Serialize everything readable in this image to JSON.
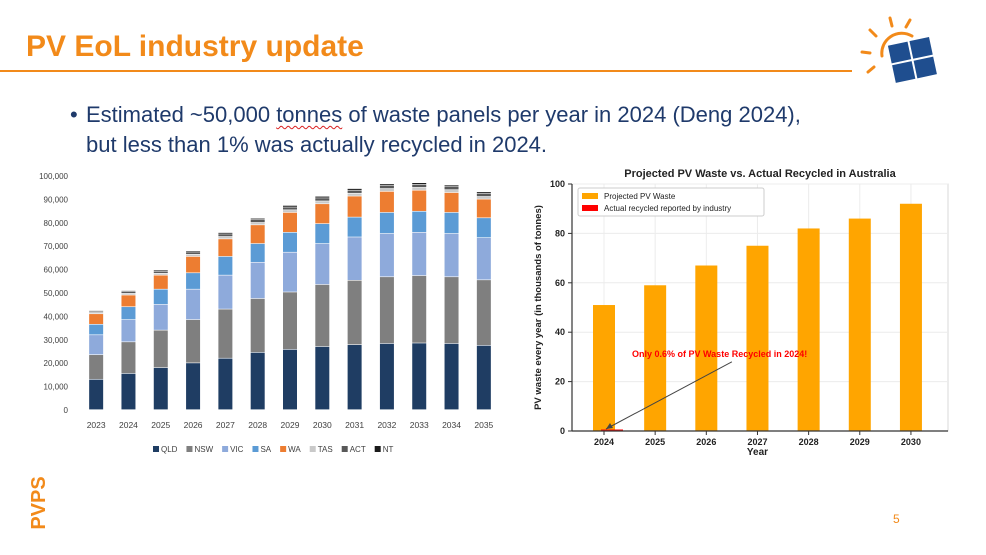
{
  "slide": {
    "title": "PV EoL industry update",
    "bullet_bullet": "•",
    "bullet_line1": "Estimated ~50,000 tonnes of waste panels per year in 2024 (Deng 2024),",
    "bullet_line2": "but less than 1% was actually recycled in 2024.",
    "bullet_line1_pre": "Estimated ~50,000 ",
    "bullet_line1_mark": "tonnes",
    "bullet_line1_post": " of waste panels per year in 2024 (Deng 2024),",
    "side_label": "PVPS",
    "page_number": "5",
    "colors": {
      "accent": "#f28a1a",
      "text": "#1f3a6b"
    }
  },
  "chart_data": [
    {
      "type": "bar",
      "stacked": true,
      "title": "",
      "xlabel": "",
      "ylabel": "",
      "ylim": [
        0,
        100000
      ],
      "yticks": [
        "0",
        "10,000",
        "20,000",
        "30,000",
        "40,000",
        "50,000",
        "60,000",
        "70,000",
        "80,000",
        "90,000",
        "100,000"
      ],
      "categories": [
        "2023",
        "2024",
        "2025",
        "2026",
        "2027",
        "2028",
        "2029",
        "2030",
        "2031",
        "2032",
        "2033",
        "2034",
        "2035"
      ],
      "series": [
        {
          "name": "QLD",
          "color": "#1f3d63",
          "values": [
            13000,
            15500,
            18000,
            20000,
            22000,
            24500,
            25800,
            27000,
            27800,
            28300,
            28500,
            28300,
            27500
          ]
        },
        {
          "name": "NSW",
          "color": "#7f7f7f",
          "values": [
            10500,
            13500,
            16000,
            18500,
            21000,
            23000,
            24500,
            26500,
            27500,
            28500,
            28800,
            28500,
            28000
          ]
        },
        {
          "name": "VIC",
          "color": "#8eaadb",
          "values": [
            8500,
            9500,
            11000,
            13000,
            14500,
            15500,
            17000,
            17500,
            18500,
            18500,
            18500,
            18500,
            18000
          ]
        },
        {
          "name": "SA",
          "color": "#5b9bd5",
          "values": [
            4500,
            5500,
            6500,
            7000,
            8000,
            8000,
            8500,
            8500,
            8500,
            9000,
            9000,
            9000,
            8500
          ]
        },
        {
          "name": "WA",
          "color": "#ed7d31",
          "values": [
            4500,
            5000,
            6000,
            7000,
            7500,
            8000,
            8500,
            8500,
            9000,
            9000,
            9000,
            8500,
            8000
          ]
        },
        {
          "name": "TAS",
          "color": "#c9c9c9",
          "values": [
            500,
            700,
            800,
            900,
            1000,
            1000,
            1100,
            1200,
            1200,
            1200,
            1200,
            1200,
            1100
          ]
        },
        {
          "name": "ACT",
          "color": "#595959",
          "values": [
            600,
            800,
            900,
            1000,
            1100,
            1200,
            1200,
            1300,
            1300,
            1300,
            1300,
            1300,
            1300
          ]
        },
        {
          "name": "NT",
          "color": "#1a1a1a",
          "values": [
            300,
            400,
            500,
            500,
            600,
            600,
            700,
            700,
            700,
            700,
            700,
            700,
            700
          ]
        }
      ],
      "legend": "bottom"
    },
    {
      "type": "bar",
      "title": "Projected PV Waste vs. Actual Recycled in Australia",
      "xlabel": "Year",
      "ylabel": "PV waste every year (in thousands of tonnes)",
      "ylim": [
        0,
        100
      ],
      "yticks": [
        "0",
        "20",
        "40",
        "60",
        "80",
        "100"
      ],
      "categories": [
        "2024",
        "2025",
        "2026",
        "2027",
        "2028",
        "2029",
        "2030"
      ],
      "series": [
        {
          "name": "Projected PV Waste",
          "color": "#ffa500",
          "values": [
            51,
            59,
            67,
            75,
            82,
            86,
            92
          ]
        },
        {
          "name": "Actual recycled reported by industry",
          "color": "#ff0000",
          "values": [
            0.3,
            0,
            0,
            0,
            0,
            0,
            0
          ]
        }
      ],
      "annotation": "Only 0.6% of PV Waste Recycled in 2024!",
      "legend": "top-left",
      "grid": true
    }
  ]
}
